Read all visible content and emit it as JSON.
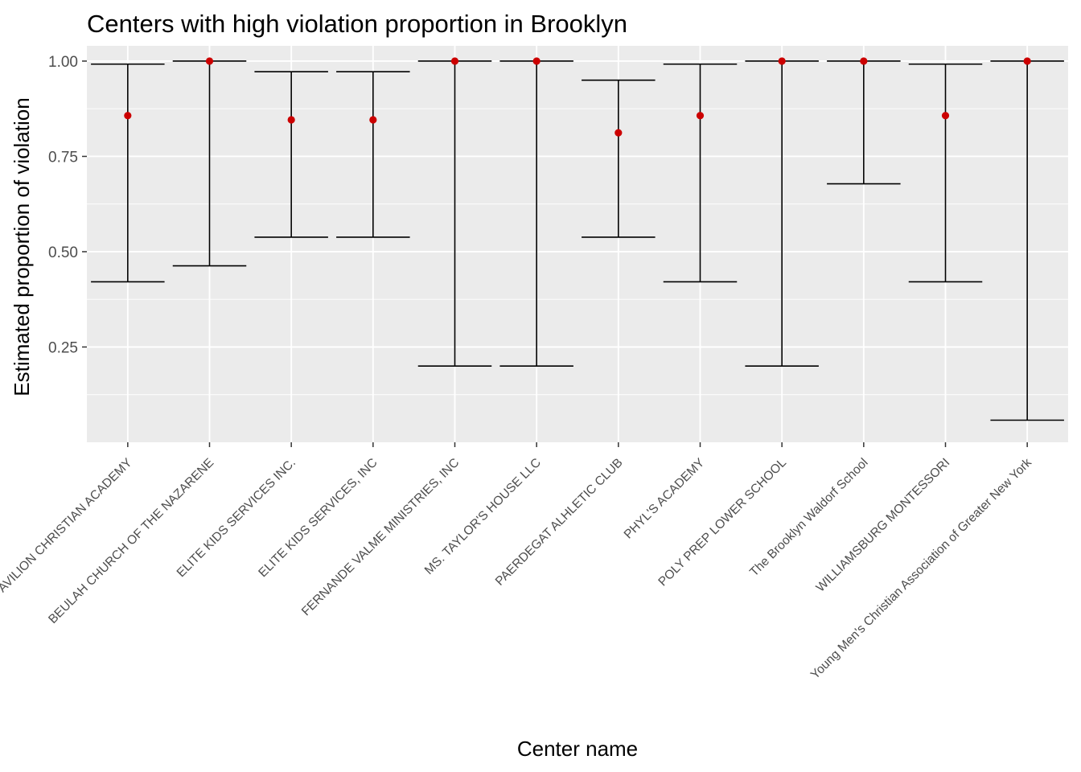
{
  "chart_data": {
    "type": "errorbar",
    "title": "Centers with high violation proportion in Brooklyn",
    "xlabel": "Center name",
    "ylabel": "Estimated proportion of violation",
    "ylim": [
      0.0,
      1.04
    ],
    "yticks": [
      0.25,
      0.5,
      0.75,
      1.0
    ],
    "ytick_labels": [
      "0.25",
      "0.50",
      "0.75",
      "1.00"
    ],
    "grid": true,
    "colors": {
      "panel": "#ebebeb",
      "grid_major": "#ffffff",
      "errorbar": "#000000",
      "point": "#cc0000"
    },
    "categories": [
      "ABUNDANT LIFE PAVILION CHRISTIAN ACADEMY",
      "BEULAH CHURCH OF THE NAZARENE",
      "ELITE KIDS SERVICES INC.",
      "ELITE KIDS SERVICES, INC",
      "FERNANDE VALME MINISTRIES, INC",
      "MS. TAYLOR'S HOUSE LLC",
      "PAERDEGAT ALHLETIC CLUB",
      "PHYL'S ACADEMY",
      "POLY PREP LOWER SCHOOL",
      "The Brooklyn Waldorf School",
      "WILLIAMSBURG MONTESSORI",
      "Young Men's Christian Association of Greater New York"
    ],
    "estimate": [
      0.857,
      1.0,
      0.846,
      0.846,
      1.0,
      1.0,
      0.812,
      0.857,
      1.0,
      1.0,
      0.857,
      1.0
    ],
    "lower": [
      0.421,
      0.463,
      0.538,
      0.538,
      0.2,
      0.2,
      0.538,
      0.421,
      0.2,
      0.678,
      0.421,
      0.058
    ],
    "upper": [
      0.992,
      1.0,
      0.972,
      0.972,
      1.0,
      1.0,
      0.95,
      0.992,
      1.0,
      1.0,
      0.992,
      1.0
    ]
  }
}
